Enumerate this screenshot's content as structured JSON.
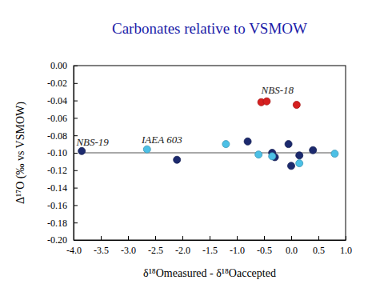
{
  "chart_data": {
    "type": "scatter",
    "title": "Carbonates relative to VSMOW",
    "xlabel": "δ¹⁸Omeasured - δ¹⁸Oaccepted",
    "ylabel": "Δ¹⁷O (‰ vs VSMOW)",
    "xlim": [
      -4.0,
      1.0
    ],
    "ylim": [
      -0.2,
      0.0
    ],
    "xticks": [
      {
        "value": -4.0,
        "label": "-4.0"
      },
      {
        "value": -3.5,
        "label": "-3.5"
      },
      {
        "value": -3.0,
        "label": "-3.0"
      },
      {
        "value": -2.5,
        "label": "-2.5"
      },
      {
        "value": -2.0,
        "label": "-2.0"
      },
      {
        "value": -1.5,
        "label": "-1.5"
      },
      {
        "value": -1.0,
        "label": "-1.0"
      },
      {
        "value": -0.5,
        "label": "-0.5"
      },
      {
        "value": 0,
        "label": "0.0"
      },
      {
        "value": 0.5,
        "label": "0.5"
      },
      {
        "value": 1.0,
        "label": "1.0"
      }
    ],
    "yticks": [
      {
        "value": 0,
        "label": "0.00"
      },
      {
        "value": -0.02,
        "label": "-0.02"
      },
      {
        "value": -0.04,
        "label": "-0.04"
      },
      {
        "value": -0.06,
        "label": "-0.06"
      },
      {
        "value": -0.08,
        "label": "-0.08"
      },
      {
        "value": -0.1,
        "label": "-0.10"
      },
      {
        "value": -0.12,
        "label": "-0.12"
      },
      {
        "value": -0.14,
        "label": "-0.14"
      },
      {
        "value": -0.16,
        "label": "-0.16"
      },
      {
        "value": -0.18,
        "label": "-0.18"
      },
      {
        "value": -0.2,
        "label": "-0.20"
      }
    ],
    "series": [
      {
        "type": "line",
        "color": "#8c8c8c",
        "line_style": "solid",
        "x": [
          -3.8,
          0.85
        ],
        "values": [
          -0.1,
          -0.1
        ]
      },
      {
        "type": "scatter",
        "color": "#1c2a6e",
        "marker": "circle",
        "x": [
          -3.85,
          -2.1,
          -0.8,
          -0.35,
          -0.3,
          -0.05,
          0.0,
          0.15,
          0.4
        ],
        "values": [
          -0.098,
          -0.108,
          -0.087,
          -0.1,
          -0.105,
          -0.09,
          -0.115,
          -0.103,
          -0.097
        ]
      },
      {
        "type": "scatter",
        "color": "#4cc0e6",
        "marker": "circle",
        "x": [
          -2.65,
          -1.2,
          -0.6,
          -0.35,
          0.15,
          0.8
        ],
        "values": [
          -0.096,
          -0.09,
          -0.102,
          -0.104,
          -0.112,
          -0.101
        ]
      },
      {
        "type": "scatter",
        "color": "#d61f1f",
        "marker": "circle",
        "x": [
          -0.55,
          -0.45,
          0.1
        ],
        "values": [
          -0.042,
          -0.041,
          -0.045
        ]
      }
    ],
    "annotations": [
      {
        "text": "NBS-18",
        "x": -0.55,
        "y": -0.032
      },
      {
        "text": "IAEA 603",
        "x": -2.75,
        "y": -0.089
      },
      {
        "text": "NBS-19",
        "x": -3.95,
        "y": -0.092
      }
    ],
    "grid": false
  }
}
